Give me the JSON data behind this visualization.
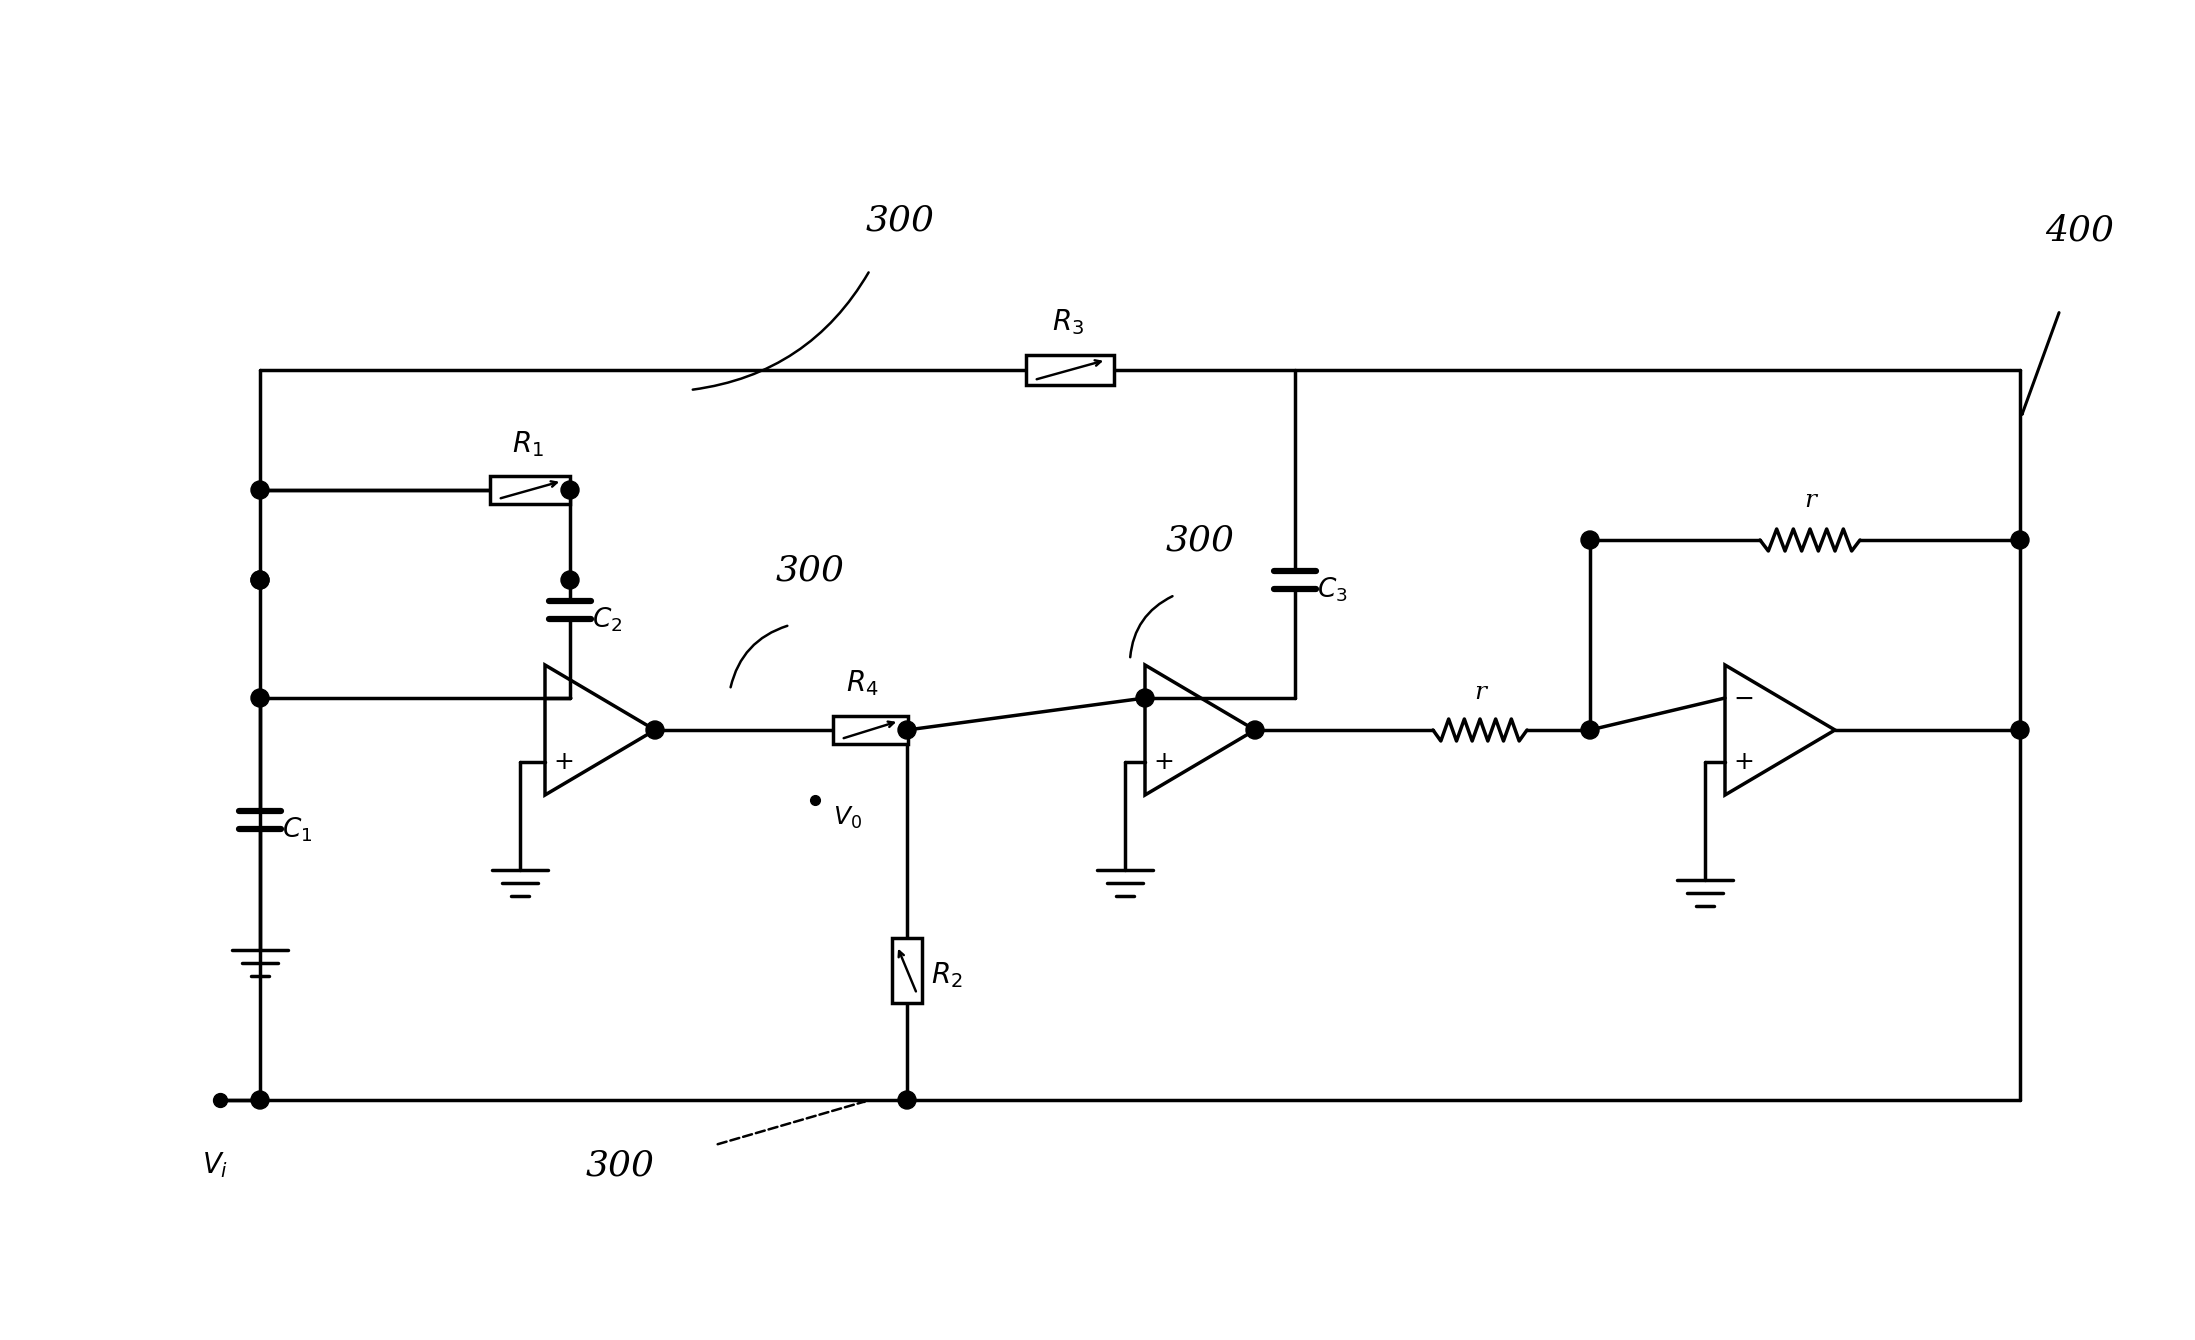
{
  "bg_color": "#ffffff",
  "lc": "#000000",
  "lw": 2.5,
  "figsize": [
    21.95,
    13.4
  ],
  "dpi": 100,
  "labels": {
    "Vi": "$V_i$",
    "V0": "$V_0$",
    "R1": "$R_1$",
    "R2": "$R_2$",
    "R3": "$R_3$",
    "R4": "$R_4$",
    "C1": "$C_1$",
    "C2": "$C_2$",
    "C3": "$C_3$",
    "r": "r",
    "n300": "300",
    "n400": "400"
  }
}
